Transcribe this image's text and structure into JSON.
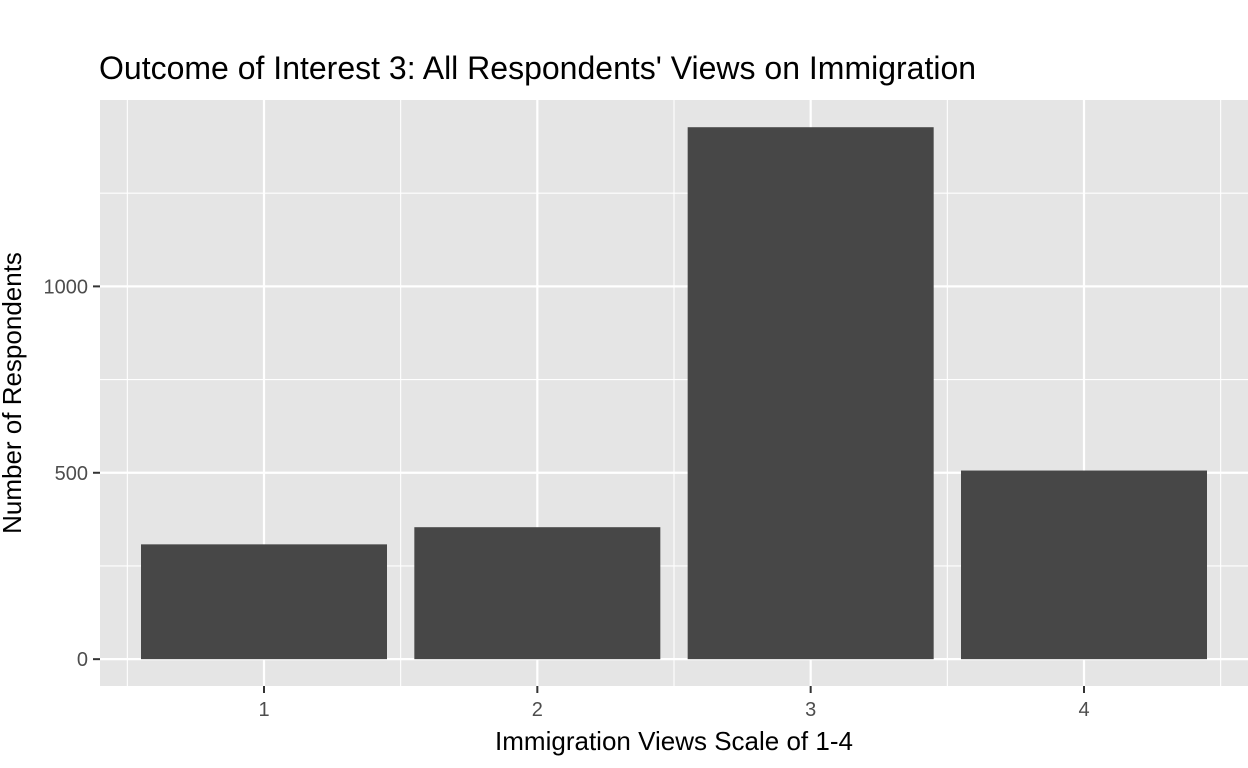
{
  "chart_data": {
    "type": "bar",
    "title": "Outcome of Interest 3: All Respondents' Views on Immigration",
    "xlabel": "Immigration Views Scale of 1-4",
    "ylabel": "Number of Respondents",
    "categories": [
      "1",
      "2",
      "3",
      "4"
    ],
    "values": [
      308,
      354,
      1427,
      506
    ],
    "ylim": [
      -72,
      1500
    ],
    "yticks": [
      0,
      500,
      1000
    ],
    "ytick_labels": [
      "0",
      "500",
      "1000"
    ],
    "grid": true,
    "legend": "none",
    "colors": {
      "bar": "#474747",
      "panel": "#e5e5e5",
      "grid": "#ffffff",
      "tick": "#333333"
    }
  }
}
